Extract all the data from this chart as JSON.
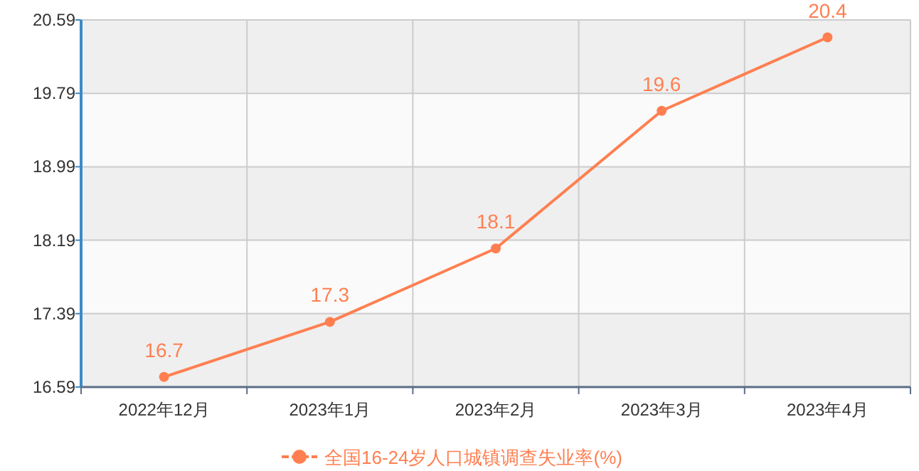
{
  "chart_data": {
    "type": "line",
    "categories": [
      "2022年12月",
      "2023年1月",
      "2023年2月",
      "2023年3月",
      "2023年4月"
    ],
    "series": [
      {
        "name": "全国16-24岁人口城镇调查失业率(%)",
        "color": "#ff7f50",
        "values": [
          16.7,
          17.3,
          18.1,
          19.6,
          20.4
        ]
      }
    ],
    "ylim": [
      16.59,
      20.59
    ],
    "yticks": [
      16.59,
      17.39,
      18.19,
      18.99,
      19.79,
      20.59
    ],
    "grid": true,
    "legend": "bottom",
    "marker": "circle",
    "data_labels": true
  }
}
